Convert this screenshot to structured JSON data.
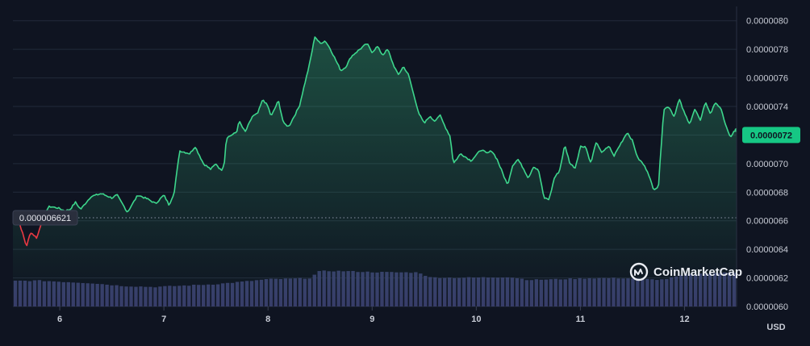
{
  "brand": {
    "name": "CoinMarketCap",
    "icon": "coinmarketcap-logo-icon"
  },
  "colors": {
    "background": "#0f1421",
    "grid": "#222a3a",
    "up": "#3dd68c",
    "down": "#ea3943",
    "volume": "#3a3f6e",
    "badge": "#16c784"
  },
  "chart_data": {
    "type": "area",
    "currency": "USD",
    "x_ticks": [
      "6",
      "7",
      "8",
      "9",
      "10",
      "11",
      "12"
    ],
    "y_ticks": [
      "0.0000060",
      "0.0000062",
      "0.0000064",
      "0.0000066",
      "0.0000068",
      "0.0000070",
      "0.0000072",
      "0.0000074",
      "0.0000076",
      "0.0000078",
      "0.0000080"
    ],
    "ylim": [
      6e-06,
      8.1e-06
    ],
    "xlim": [
      5.55,
      12.5
    ],
    "baseline": {
      "value": 6.621e-06,
      "label": "0.000006621"
    },
    "current_price": {
      "value": 7.2e-06,
      "label": "0.0000072"
    },
    "price_keypoints": [
      [
        5.55,
        6.63e-06
      ],
      [
        5.62,
        6.57e-06
      ],
      [
        5.68,
        6.42e-06
      ],
      [
        5.72,
        6.52e-06
      ],
      [
        5.78,
        6.48e-06
      ],
      [
        5.85,
        6.65e-06
      ],
      [
        5.9,
        6.7e-06
      ],
      [
        5.98,
        6.69e-06
      ],
      [
        6.05,
        6.67e-06
      ],
      [
        6.1,
        6.68e-06
      ],
      [
        6.15,
        6.73e-06
      ],
      [
        6.2,
        6.68e-06
      ],
      [
        6.3,
        6.77e-06
      ],
      [
        6.4,
        6.79e-06
      ],
      [
        6.5,
        6.76e-06
      ],
      [
        6.55,
        6.78e-06
      ],
      [
        6.65,
        6.66e-06
      ],
      [
        6.75,
        6.78e-06
      ],
      [
        6.85,
        6.75e-06
      ],
      [
        6.92,
        6.72e-06
      ],
      [
        7.0,
        6.78e-06
      ],
      [
        7.05,
        6.71e-06
      ],
      [
        7.1,
        6.8e-06
      ],
      [
        7.15,
        7.09e-06
      ],
      [
        7.25,
        7.07e-06
      ],
      [
        7.3,
        7.12e-06
      ],
      [
        7.38,
        7e-06
      ],
      [
        7.45,
        6.96e-06
      ],
      [
        7.5,
        7e-06
      ],
      [
        7.55,
        6.95e-06
      ],
      [
        7.58,
        7e-06
      ],
      [
        7.6,
        7.18e-06
      ],
      [
        7.7,
        7.22e-06
      ],
      [
        7.72,
        7.3e-06
      ],
      [
        7.78,
        7.22e-06
      ],
      [
        7.85,
        7.33e-06
      ],
      [
        7.9,
        7.35e-06
      ],
      [
        7.95,
        7.45e-06
      ],
      [
        8.0,
        7.4e-06
      ],
      [
        8.03,
        7.33e-06
      ],
      [
        8.1,
        7.44e-06
      ],
      [
        8.15,
        7.28e-06
      ],
      [
        8.2,
        7.26e-06
      ],
      [
        8.25,
        7.33e-06
      ],
      [
        8.3,
        7.4e-06
      ],
      [
        8.35,
        7.55e-06
      ],
      [
        8.4,
        7.7e-06
      ],
      [
        8.45,
        7.89e-06
      ],
      [
        8.5,
        7.84e-06
      ],
      [
        8.55,
        7.86e-06
      ],
      [
        8.6,
        7.8e-06
      ],
      [
        8.7,
        7.65e-06
      ],
      [
        8.75,
        7.68e-06
      ],
      [
        8.8,
        7.75e-06
      ],
      [
        8.88,
        7.8e-06
      ],
      [
        8.95,
        7.84e-06
      ],
      [
        9.0,
        7.78e-06
      ],
      [
        9.05,
        7.82e-06
      ],
      [
        9.1,
        7.76e-06
      ],
      [
        9.15,
        7.8e-06
      ],
      [
        9.2,
        7.7e-06
      ],
      [
        9.25,
        7.62e-06
      ],
      [
        9.3,
        7.68e-06
      ],
      [
        9.35,
        7.62e-06
      ],
      [
        9.4,
        7.48e-06
      ],
      [
        9.45,
        7.35e-06
      ],
      [
        9.5,
        7.28e-06
      ],
      [
        9.55,
        7.33e-06
      ],
      [
        9.6,
        7.3e-06
      ],
      [
        9.65,
        7.34e-06
      ],
      [
        9.7,
        7.26e-06
      ],
      [
        9.75,
        7.19e-06
      ],
      [
        9.78,
        7e-06
      ],
      [
        9.85,
        7.07e-06
      ],
      [
        9.95,
        7.02e-06
      ],
      [
        10.05,
        7.1e-06
      ],
      [
        10.1,
        7.07e-06
      ],
      [
        10.15,
        7.09e-06
      ],
      [
        10.2,
        7.03e-06
      ],
      [
        10.25,
        6.94e-06
      ],
      [
        10.3,
        6.85e-06
      ],
      [
        10.35,
        6.99e-06
      ],
      [
        10.4,
        7.03e-06
      ],
      [
        10.45,
        6.97e-06
      ],
      [
        10.5,
        6.9e-06
      ],
      [
        10.55,
        6.98e-06
      ],
      [
        10.6,
        6.95e-06
      ],
      [
        10.65,
        6.76e-06
      ],
      [
        10.7,
        6.75e-06
      ],
      [
        10.75,
        6.9e-06
      ],
      [
        10.8,
        6.95e-06
      ],
      [
        10.85,
        7.13e-06
      ],
      [
        10.9,
        7e-06
      ],
      [
        10.95,
        6.97e-06
      ],
      [
        11.0,
        7.12e-06
      ],
      [
        11.05,
        7.12e-06
      ],
      [
        11.1,
        7e-06
      ],
      [
        11.15,
        7.15e-06
      ],
      [
        11.2,
        7.08e-06
      ],
      [
        11.28,
        7.12e-06
      ],
      [
        11.32,
        7.05e-06
      ],
      [
        11.38,
        7.13e-06
      ],
      [
        11.45,
        7.22e-06
      ],
      [
        11.5,
        7.16e-06
      ],
      [
        11.55,
        7.04e-06
      ],
      [
        11.6,
        7e-06
      ],
      [
        11.65,
        6.94e-06
      ],
      [
        11.7,
        6.82e-06
      ],
      [
        11.75,
        6.84e-06
      ],
      [
        11.78,
        7.17e-06
      ],
      [
        11.8,
        7.38e-06
      ],
      [
        11.85,
        7.4e-06
      ],
      [
        11.9,
        7.33e-06
      ],
      [
        11.95,
        7.45e-06
      ],
      [
        12.0,
        7.35e-06
      ],
      [
        12.05,
        7.28e-06
      ],
      [
        12.1,
        7.38e-06
      ],
      [
        12.15,
        7.3e-06
      ],
      [
        12.2,
        7.43e-06
      ],
      [
        12.25,
        7.35e-06
      ],
      [
        12.3,
        7.43e-06
      ],
      [
        12.35,
        7.38e-06
      ],
      [
        12.4,
        7.26e-06
      ],
      [
        12.44,
        7.18e-06
      ],
      [
        12.47,
        7.22e-06
      ],
      [
        12.5,
        7.23e-06
      ]
    ],
    "volume_keypoints": [
      [
        5.55,
        0.72
      ],
      [
        5.8,
        0.73
      ],
      [
        6.0,
        0.7
      ],
      [
        6.3,
        0.66
      ],
      [
        6.6,
        0.58
      ],
      [
        6.9,
        0.55
      ],
      [
        7.2,
        0.59
      ],
      [
        7.5,
        0.63
      ],
      [
        7.8,
        0.71
      ],
      [
        8.0,
        0.77
      ],
      [
        8.2,
        0.78
      ],
      [
        8.4,
        0.8
      ],
      [
        8.5,
        1.0
      ],
      [
        8.7,
        1.0
      ],
      [
        9.0,
        0.97
      ],
      [
        9.3,
        0.96
      ],
      [
        9.45,
        0.96
      ],
      [
        9.55,
        0.82
      ],
      [
        9.8,
        0.81
      ],
      [
        10.1,
        0.82
      ],
      [
        10.3,
        0.83
      ],
      [
        10.4,
        0.8
      ],
      [
        10.5,
        0.75
      ],
      [
        10.8,
        0.77
      ],
      [
        11.1,
        0.8
      ],
      [
        11.4,
        0.8
      ],
      [
        11.7,
        0.76
      ],
      [
        11.8,
        0.76
      ],
      [
        12.0,
        0.9
      ],
      [
        12.3,
        0.94
      ],
      [
        12.5,
        0.96
      ]
    ]
  }
}
